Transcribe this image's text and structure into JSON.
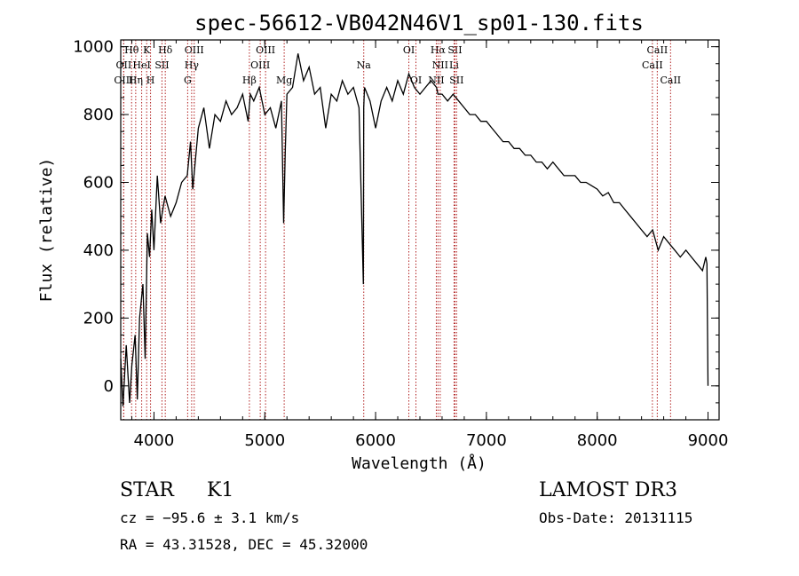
{
  "chart_data": {
    "type": "line",
    "title": "spec-56612-VB042N46V1_sp01-130.fits",
    "xlabel": "Wavelength (Å)",
    "ylabel": "Flux (relative)",
    "xlim": [
      3700,
      9100
    ],
    "ylim": [
      -100,
      1020
    ],
    "xticks": [
      4000,
      5000,
      6000,
      7000,
      8000,
      9000
    ],
    "yticks": [
      0,
      200,
      400,
      600,
      800,
      1000
    ],
    "grid": false,
    "line_color": "#000000",
    "marker_color": "#b22222",
    "series": [
      {
        "x": [
          3700,
          3720,
          3750,
          3780,
          3800,
          3830,
          3850,
          3870,
          3900,
          3920,
          3940,
          3960,
          3980,
          4000,
          4030,
          4060,
          4100,
          4150,
          4200,
          4250,
          4300,
          4330,
          4350,
          4400,
          4450,
          4500,
          4550,
          4600,
          4650,
          4700,
          4750,
          4800,
          4850,
          4870,
          4900,
          4950,
          5000,
          5050,
          5100,
          5150,
          5170,
          5185,
          5200,
          5250,
          5300,
          5350,
          5400,
          5450,
          5500,
          5550,
          5600,
          5650,
          5700,
          5750,
          5800,
          5850,
          5890,
          5893,
          5900,
          5950,
          6000,
          6050,
          6100,
          6150,
          6200,
          6250,
          6300,
          6350,
          6400,
          6450,
          6500,
          6550,
          6563,
          6600,
          6650,
          6700,
          6750,
          6800,
          6850,
          6900,
          6950,
          7000,
          7050,
          7100,
          7150,
          7200,
          7250,
          7300,
          7350,
          7400,
          7450,
          7500,
          7550,
          7600,
          7650,
          7700,
          7750,
          7800,
          7850,
          7900,
          7950,
          8000,
          8050,
          8100,
          8150,
          8200,
          8250,
          8300,
          8350,
          8400,
          8450,
          8500,
          8550,
          8600,
          8650,
          8700,
          8750,
          8800,
          8850,
          8900,
          8950,
          8980,
          8990,
          9000
        ],
        "y": [
          80,
          -60,
          120,
          -50,
          60,
          150,
          -40,
          200,
          300,
          80,
          450,
          380,
          520,
          400,
          620,
          480,
          560,
          500,
          540,
          600,
          620,
          720,
          580,
          760,
          820,
          700,
          800,
          780,
          840,
          800,
          820,
          860,
          780,
          860,
          840,
          880,
          800,
          820,
          760,
          840,
          480,
          700,
          860,
          880,
          980,
          900,
          940,
          860,
          880,
          760,
          860,
          840,
          900,
          860,
          880,
          820,
          300,
          820,
          880,
          840,
          760,
          840,
          880,
          840,
          900,
          860,
          920,
          880,
          860,
          880,
          900,
          880,
          860,
          860,
          840,
          860,
          840,
          820,
          800,
          800,
          780,
          780,
          760,
          740,
          720,
          720,
          700,
          700,
          680,
          680,
          660,
          660,
          640,
          660,
          640,
          620,
          620,
          620,
          600,
          600,
          590,
          580,
          560,
          570,
          540,
          540,
          520,
          500,
          480,
          460,
          440,
          460,
          400,
          440,
          420,
          400,
          380,
          400,
          380,
          360,
          340,
          380,
          360,
          0
        ]
      }
    ],
    "lines": [
      {
        "name": "Hθ",
        "wl": 3798,
        "row": 0
      },
      {
        "name": "OII",
        "wl": 3727,
        "row": 1
      },
      {
        "name": "OIII",
        "wl": 3727,
        "row": 2
      },
      {
        "name": "K",
        "wl": 3934,
        "row": 0
      },
      {
        "name": "HeI",
        "wl": 3889,
        "row": 1
      },
      {
        "name": "Hη",
        "wl": 3835,
        "row": 2
      },
      {
        "name": "Hδ",
        "wl": 4102,
        "row": 0
      },
      {
        "name": "SII",
        "wl": 4072,
        "row": 1
      },
      {
        "name": "H",
        "wl": 3969,
        "row": 2
      },
      {
        "name": "OIII",
        "wl": 4363,
        "row": 0
      },
      {
        "name": "Hγ",
        "wl": 4340,
        "row": 1
      },
      {
        "name": "G",
        "wl": 4304,
        "row": 2
      },
      {
        "name": "OIII",
        "wl": 5007,
        "row": 0
      },
      {
        "name": "OIII",
        "wl": 4959,
        "row": 1
      },
      {
        "name": "Hβ",
        "wl": 4861,
        "row": 2
      },
      {
        "name": "Mg",
        "wl": 5175,
        "row": 2
      },
      {
        "name": "Na",
        "wl": 5893,
        "row": 1
      },
      {
        "name": "OI",
        "wl": 6300,
        "row": 0
      },
      {
        "name": "OI",
        "wl": 6364,
        "row": 2
      },
      {
        "name": "Hα",
        "wl": 6563,
        "row": 0
      },
      {
        "name": "NII",
        "wl": 6583,
        "row": 1
      },
      {
        "name": "NII",
        "wl": 6548,
        "row": 2
      },
      {
        "name": "SII",
        "wl": 6716,
        "row": 0
      },
      {
        "name": "Li",
        "wl": 6708,
        "row": 1
      },
      {
        "name": "SII",
        "wl": 6731,
        "row": 2
      },
      {
        "name": "CaII",
        "wl": 8542,
        "row": 0
      },
      {
        "name": "CaII",
        "wl": 8498,
        "row": 1
      },
      {
        "name": "CaII",
        "wl": 8662,
        "row": 2
      }
    ]
  },
  "info": {
    "class": "STAR",
    "subclass": "K1",
    "survey": "LAMOST DR3",
    "cz": "cz = −95.6 ± 3.1 km/s",
    "obs_date": "Obs-Date: 20131115",
    "coords": "RA =  43.31528, DEC =  45.32000"
  }
}
